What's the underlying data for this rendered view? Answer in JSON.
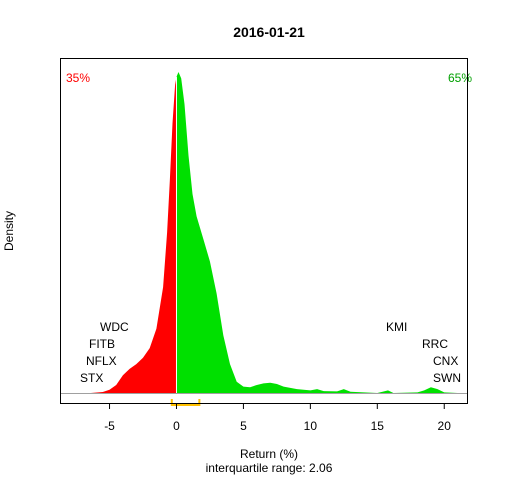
{
  "chart_data": {
    "type": "area",
    "title": "2016-01-21",
    "xlabel": "Return (%)",
    "ylabel": "Density",
    "subtitle": "interquartile range: 2.06",
    "xlim": [
      -8.7,
      21.7
    ],
    "xticks": [
      -5,
      0,
      5,
      10,
      15,
      20
    ],
    "ylim": [
      0,
      1
    ],
    "split_at": 0,
    "colors": {
      "negative": "#ff0000",
      "positive": "#00e000",
      "iqr": "#ffc000",
      "axis": "#000000"
    },
    "negative_share": "35%",
    "positive_share": "65%",
    "iqr_range": [
      -0.35,
      1.71
    ],
    "density": [
      [
        -6.4,
        0.0
      ],
      [
        -5.5,
        0.003
      ],
      [
        -5.0,
        0.01
      ],
      [
        -4.5,
        0.025
      ],
      [
        -4.0,
        0.055
      ],
      [
        -3.5,
        0.075
      ],
      [
        -3.0,
        0.09
      ],
      [
        -2.5,
        0.11
      ],
      [
        -2.0,
        0.14
      ],
      [
        -1.5,
        0.2
      ],
      [
        -1.0,
        0.33
      ],
      [
        -0.7,
        0.5
      ],
      [
        -0.5,
        0.66
      ],
      [
        -0.3,
        0.84
      ],
      [
        -0.1,
        0.96
      ],
      [
        0.0,
        0.985
      ],
      [
        0.15,
        1.0
      ],
      [
        0.35,
        0.98
      ],
      [
        0.6,
        0.9
      ],
      [
        0.9,
        0.74
      ],
      [
        1.2,
        0.62
      ],
      [
        1.5,
        0.55
      ],
      [
        2.0,
        0.48
      ],
      [
        2.5,
        0.41
      ],
      [
        3.0,
        0.31
      ],
      [
        3.5,
        0.18
      ],
      [
        4.0,
        0.09
      ],
      [
        4.5,
        0.035
      ],
      [
        5.0,
        0.02
      ],
      [
        5.5,
        0.018
      ],
      [
        6.0,
        0.025
      ],
      [
        6.5,
        0.03
      ],
      [
        7.0,
        0.032
      ],
      [
        7.5,
        0.028
      ],
      [
        8.0,
        0.02
      ],
      [
        8.5,
        0.016
      ],
      [
        9.0,
        0.012
      ],
      [
        10.0,
        0.008
      ],
      [
        10.5,
        0.012
      ],
      [
        11.0,
        0.006
      ],
      [
        12.0,
        0.005
      ],
      [
        12.5,
        0.012
      ],
      [
        13.0,
        0.004
      ],
      [
        14.0,
        0.002
      ],
      [
        15.0,
        0.0
      ],
      [
        15.8,
        0.008
      ],
      [
        16.2,
        0.0
      ],
      [
        18.0,
        0.002
      ],
      [
        18.5,
        0.008
      ],
      [
        19.0,
        0.018
      ],
      [
        19.5,
        0.012
      ],
      [
        20.0,
        0.002
      ],
      [
        21.0,
        0.0
      ]
    ],
    "stock_labels": {
      "left": [
        "WDC",
        "FITB",
        "NFLX",
        "STX"
      ],
      "right": [
        "KMI",
        "RRC",
        "CNX",
        "SWN"
      ]
    }
  }
}
